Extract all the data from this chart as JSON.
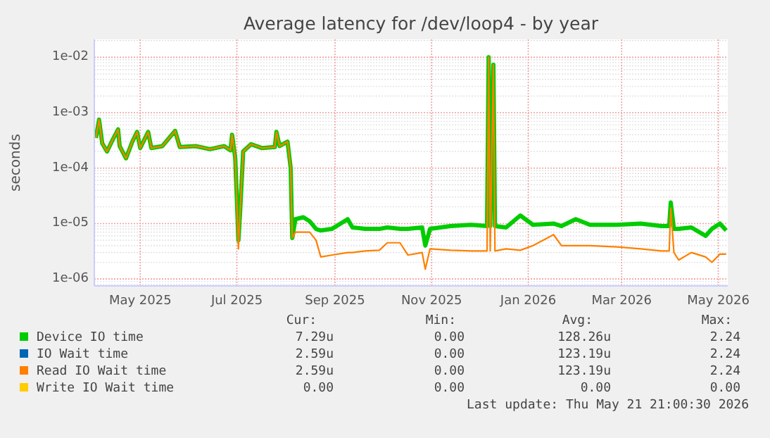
{
  "chart_data": {
    "type": "line",
    "title": "Average latency for /dev/loop4 - by year",
    "ylabel": "seconds",
    "log": "y",
    "grid": true,
    "legend": "bottom",
    "line_style": "solid",
    "xlim": [
      "2025-04-02",
      "2026-05-07"
    ],
    "xticks": [
      {
        "value": "2025-05-01",
        "label": "May 2025"
      },
      {
        "value": "2025-07-01",
        "label": "Jul 2025"
      },
      {
        "value": "2025-09-01",
        "label": "Sep 2025"
      },
      {
        "value": "2025-11-01",
        "label": "Nov 2025"
      },
      {
        "value": "2026-01-01",
        "label": "Jan 2026"
      },
      {
        "value": "2026-03-01",
        "label": "Mar 2026"
      },
      {
        "value": "2026-05-01",
        "label": "May 2026"
      }
    ],
    "ylim": [
      7.5e-07,
      0.021
    ],
    "yticks": [
      {
        "value": 1e-06,
        "label": "1e-06"
      },
      {
        "value": 1e-05,
        "label": "1e-05"
      },
      {
        "value": 0.0001,
        "label": "1e-04"
      },
      {
        "value": 0.001,
        "label": "1e-03"
      },
      {
        "value": 0.01,
        "label": "1e-02"
      }
    ],
    "x": [
      "2025-04-03",
      "2025-04-05",
      "2025-04-07",
      "2025-04-10",
      "2025-04-13",
      "2025-04-17",
      "2025-04-18",
      "2025-04-22",
      "2025-04-26",
      "2025-04-29",
      "2025-05-01",
      "2025-05-06",
      "2025-05-08",
      "2025-05-15",
      "2025-05-23",
      "2025-05-26",
      "2025-06-05",
      "2025-06-14",
      "2025-06-23",
      "2025-06-27",
      "2025-06-28",
      "2025-06-30",
      "2025-07-02",
      "2025-07-03",
      "2025-07-05",
      "2025-07-10",
      "2025-07-17",
      "2025-07-25",
      "2025-07-26",
      "2025-07-28",
      "2025-08-02",
      "2025-08-04",
      "2025-08-05",
      "2025-08-07",
      "2025-08-12",
      "2025-08-16",
      "2025-08-20",
      "2025-08-23",
      "2025-08-30",
      "2025-09-09",
      "2025-09-12",
      "2025-09-20",
      "2025-09-29",
      "2025-10-04",
      "2025-10-12",
      "2025-10-17",
      "2025-10-26",
      "2025-10-28",
      "2025-10-31",
      "2025-11-13",
      "2025-11-26",
      "2025-12-06",
      "2025-12-07",
      "2025-12-08",
      "2025-12-10",
      "2025-12-11",
      "2025-12-18",
      "2025-12-27",
      "2026-01-04",
      "2026-01-17",
      "2026-01-22",
      "2026-01-31",
      "2026-02-09",
      "2026-02-26",
      "2026-03-13",
      "2026-03-26",
      "2026-03-31",
      "2026-04-01",
      "2026-04-03",
      "2026-04-06",
      "2026-04-14",
      "2026-04-23",
      "2026-04-27",
      "2026-05-02",
      "2026-05-06"
    ],
    "series": [
      {
        "name": "Device IO time",
        "color": "#00cc00",
        "values": [
          0.00035,
          0.00075,
          0.00028,
          0.0002,
          0.0003,
          0.0005,
          0.00025,
          0.00015,
          0.0003,
          0.00045,
          0.00023,
          0.00045,
          0.00023,
          0.00025,
          0.00047,
          0.00024,
          0.00025,
          0.00022,
          0.00025,
          0.00021,
          0.0004,
          0.00015,
          5e-06,
          1.5e-05,
          0.0002,
          0.00027,
          0.00023,
          0.00024,
          0.00045,
          0.00025,
          0.0003,
          0.0001,
          5.5e-06,
          1.2e-05,
          1.3e-05,
          1.1e-05,
          8e-06,
          7.5e-06,
          8e-06,
          1.2e-05,
          8.5e-06,
          8e-06,
          8e-06,
          8.5e-06,
          8e-06,
          8e-06,
          8.5e-06,
          4e-06,
          8e-06,
          9e-06,
          9.5e-06,
          9e-06,
          0.01,
          9e-06,
          0.0073,
          9e-06,
          8.5e-06,
          1.4e-05,
          9.5e-06,
          1e-05,
          9e-06,
          1.2e-05,
          9.5e-06,
          9.5e-06,
          1e-05,
          9e-06,
          9e-06,
          2.4e-05,
          8e-06,
          8e-06,
          8.5e-06,
          6e-06,
          8e-06,
          1e-05,
          7.5e-06
        ]
      },
      {
        "name": "IO Wait time",
        "color": "#0066b3",
        "values": [
          null,
          null,
          null,
          null,
          null,
          null,
          null,
          null,
          null,
          null,
          null,
          null,
          null,
          null,
          null,
          null,
          null,
          null,
          null,
          null,
          null,
          null,
          null,
          null,
          null,
          null,
          null,
          null,
          null,
          null,
          null,
          null,
          null,
          null,
          null,
          null,
          null,
          null,
          null,
          null,
          null,
          null,
          null,
          null,
          null,
          null,
          null,
          null,
          null,
          null,
          null,
          null,
          null,
          null,
          null,
          null,
          null,
          null,
          null,
          null,
          null,
          null,
          null,
          null,
          null,
          null,
          null,
          null,
          null,
          null,
          null,
          null,
          null,
          null,
          null
        ]
      },
      {
        "name": "Read IO Wait time",
        "color": "#ff8000",
        "values": [
          0.00035,
          0.00075,
          0.00028,
          0.0002,
          0.0003,
          0.0005,
          0.00025,
          0.00015,
          0.0003,
          0.00045,
          0.00023,
          0.00045,
          0.00023,
          0.00025,
          0.00047,
          0.00024,
          0.00025,
          0.00022,
          0.00025,
          0.00021,
          0.0004,
          0.00015,
          3.5e-06,
          1.5e-05,
          0.0002,
          0.00027,
          0.00023,
          0.00024,
          0.00045,
          0.00025,
          0.0003,
          0.0001,
          5.5e-06,
          7e-06,
          7e-06,
          7e-06,
          5e-06,
          2.5e-06,
          2.7e-06,
          3e-06,
          3e-06,
          3.2e-06,
          3.3e-06,
          4.5e-06,
          4.5e-06,
          2.7e-06,
          3e-06,
          1.5e-06,
          3.5e-06,
          3.3e-06,
          3.2e-06,
          3.2e-06,
          0.01,
          3.2e-06,
          0.0073,
          3.2e-06,
          3.5e-06,
          3.3e-06,
          4e-06,
          6.3e-06,
          4e-06,
          4e-06,
          4e-06,
          3.8e-06,
          3.5e-06,
          3.2e-06,
          3.2e-06,
          1.9e-05,
          3e-06,
          2.2e-06,
          3e-06,
          2.5e-06,
          2e-06,
          2.8e-06,
          2.8e-06
        ]
      },
      {
        "name": "Write IO Wait time",
        "color": "#ffcc00",
        "values": [
          null,
          null,
          null,
          null,
          null,
          null,
          null,
          null,
          null,
          null,
          null,
          null,
          null,
          null,
          null,
          null,
          null,
          null,
          null,
          null,
          null,
          null,
          null,
          null,
          null,
          null,
          null,
          null,
          null,
          null,
          null,
          null,
          null,
          null,
          null,
          null,
          null,
          null,
          null,
          null,
          null,
          null,
          null,
          null,
          null,
          null,
          null,
          null,
          null,
          null,
          null,
          null,
          null,
          null,
          null,
          null,
          null,
          null,
          null,
          null,
          null,
          null,
          null,
          null,
          null,
          null,
          null,
          null,
          null,
          null,
          null,
          null,
          null,
          null,
          null
        ]
      }
    ],
    "annotations": [
      "Cur:",
      "Min:",
      "Avg:",
      "Max:",
      "7.29u",
      "0.00",
      "128.26u",
      "2.24",
      "2.59u",
      "0.00",
      "123.19u",
      "2.24",
      "2.59u",
      "0.00",
      "123.19u",
      "2.24",
      "0.00",
      "0.00",
      "0.00",
      "0.00",
      "Last update: Thu May 21 21:00:30 2026"
    ]
  }
}
